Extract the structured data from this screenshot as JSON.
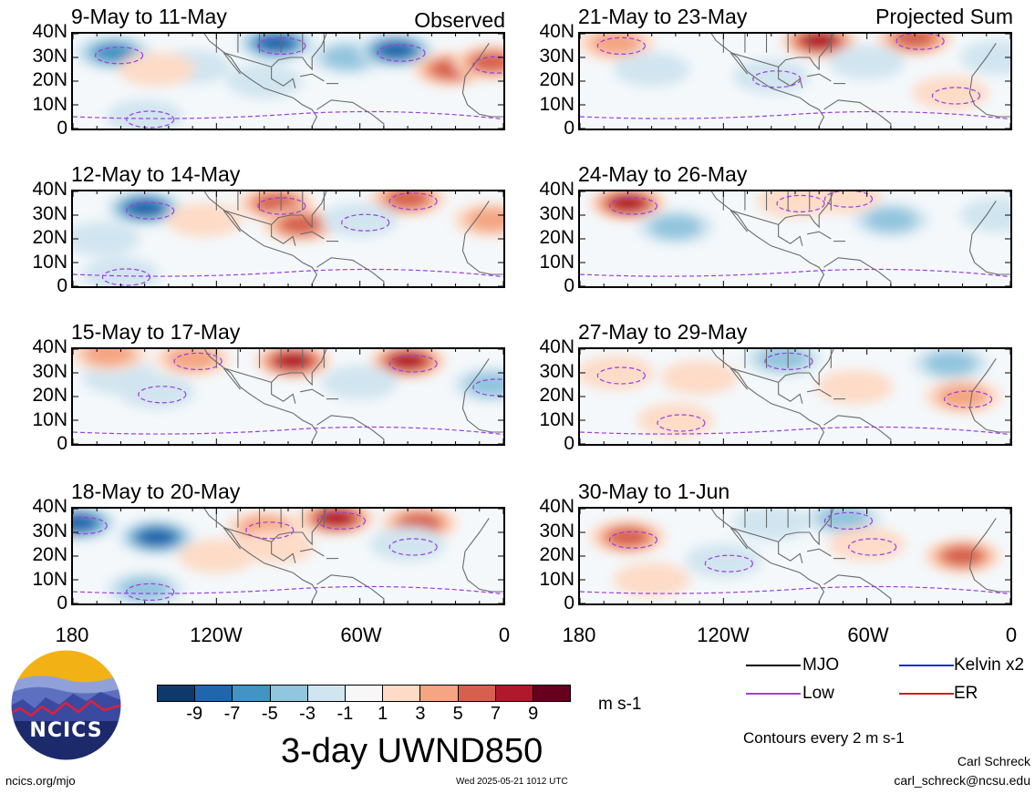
{
  "figure": {
    "variable_title": "3-day UWND850",
    "units": "m s-1",
    "contour_note": "Contours every 2 m s-1",
    "author": "Carl Schreck",
    "email": "carl_schreck@ncsu.edu",
    "site": "ncics.org/mjo",
    "timestamp": "Wed 2025-05-21 1012 UTC",
    "logo_text": "NCICS",
    "observed_label": "Observed",
    "projected_label": "Projected Sum"
  },
  "legend": {
    "items": [
      {
        "label": "MJO",
        "color": "#000000"
      },
      {
        "label": "Kelvin x2",
        "color": "#1f2fd0"
      },
      {
        "label": "Low",
        "color": "#a040e0"
      },
      {
        "label": "ER",
        "color": "#d02020"
      }
    ]
  },
  "colorbar": {
    "labels": [
      "-9",
      "-7",
      "-5",
      "-3",
      "-1",
      "1",
      "3",
      "5",
      "7",
      "9"
    ],
    "colors": [
      "#0d3a6b",
      "#2166ac",
      "#4393c3",
      "#92c5de",
      "#d1e5f0",
      "#f7f7f7",
      "#fddbc7",
      "#f4a582",
      "#d6604d",
      "#b2182b",
      "#67001f"
    ]
  },
  "chart_data": [
    {
      "type": "heatmap",
      "title": "9-May to 11-May",
      "column": "observed",
      "x_ticks": [
        "180",
        "120W",
        "60W",
        "0"
      ],
      "y_ticks": [
        "40N",
        "30N",
        "20N",
        "10N",
        "0"
      ],
      "xlim": [
        -180,
        0
      ],
      "ylim": [
        0,
        40
      ],
      "features": [
        {
          "lon": -163,
          "lat": 32,
          "value": -6
        },
        {
          "lon": -130,
          "lat": 26,
          "value": -3
        },
        {
          "lon": -95,
          "lat": 36,
          "value": -8
        },
        {
          "lon": -65,
          "lat": 30,
          "value": -4
        },
        {
          "lon": -45,
          "lat": 33,
          "value": -8
        },
        {
          "lon": -22,
          "lat": 25,
          "value": 7
        },
        {
          "lon": -5,
          "lat": 28,
          "value": 6
        },
        {
          "lon": -145,
          "lat": 25,
          "value": 2
        },
        {
          "lon": -150,
          "lat": 5,
          "value": -2
        },
        {
          "lon": -100,
          "lat": 20,
          "value": -3
        }
      ]
    },
    {
      "type": "heatmap",
      "title": "12-May to 14-May",
      "column": "observed",
      "x_ticks": [
        "180",
        "120W",
        "60W",
        "0"
      ],
      "y_ticks": [
        "40N",
        "30N",
        "20N",
        "10N",
        "0"
      ],
      "xlim": [
        -180,
        0
      ],
      "ylim": [
        0,
        40
      ],
      "features": [
        {
          "lon": -150,
          "lat": 33,
          "value": -9
        },
        {
          "lon": -168,
          "lat": 20,
          "value": -3
        },
        {
          "lon": -95,
          "lat": 35,
          "value": 6
        },
        {
          "lon": -85,
          "lat": 26,
          "value": 7
        },
        {
          "lon": -40,
          "lat": 37,
          "value": 6
        },
        {
          "lon": -5,
          "lat": 28,
          "value": 4
        },
        {
          "lon": -60,
          "lat": 28,
          "value": -3
        },
        {
          "lon": -125,
          "lat": 28,
          "value": 2
        },
        {
          "lon": -160,
          "lat": 5,
          "value": -2
        }
      ]
    },
    {
      "type": "heatmap",
      "title": "15-May to 17-May",
      "column": "observed",
      "x_ticks": [
        "180",
        "120W",
        "60W",
        "0"
      ],
      "y_ticks": [
        "40N",
        "30N",
        "20N",
        "10N",
        "0"
      ],
      "xlim": [
        -180,
        0
      ],
      "ylim": [
        0,
        40
      ],
      "features": [
        {
          "lon": -130,
          "lat": 36,
          "value": 5
        },
        {
          "lon": -88,
          "lat": 35,
          "value": 9
        },
        {
          "lon": -40,
          "lat": 35,
          "value": 8
        },
        {
          "lon": -160,
          "lat": 28,
          "value": -3
        },
        {
          "lon": -145,
          "lat": 22,
          "value": -3
        },
        {
          "lon": -60,
          "lat": 26,
          "value": -3
        },
        {
          "lon": -5,
          "lat": 25,
          "value": -5
        },
        {
          "lon": -165,
          "lat": 38,
          "value": 4
        }
      ]
    },
    {
      "type": "heatmap",
      "title": "18-May to 20-May",
      "column": "observed",
      "x_ticks": [
        "180",
        "120W",
        "60W",
        "0"
      ],
      "y_ticks": [
        "40N",
        "30N",
        "20N",
        "10N",
        "0"
      ],
      "xlim": [
        -180,
        0
      ],
      "ylim": [
        0,
        40
      ],
      "features": [
        {
          "lon": -178,
          "lat": 34,
          "value": -9
        },
        {
          "lon": -145,
          "lat": 28,
          "value": -8
        },
        {
          "lon": -70,
          "lat": 36,
          "value": 9
        },
        {
          "lon": -35,
          "lat": 34,
          "value": 6
        },
        {
          "lon": -100,
          "lat": 32,
          "value": 5
        },
        {
          "lon": -120,
          "lat": 20,
          "value": 3
        },
        {
          "lon": -150,
          "lat": 6,
          "value": -5
        },
        {
          "lon": -95,
          "lat": 24,
          "value": 3
        },
        {
          "lon": -40,
          "lat": 25,
          "value": -3
        }
      ]
    },
    {
      "type": "heatmap",
      "title": "21-May to 23-May",
      "column": "projected",
      "x_ticks": [
        "180",
        "120W",
        "60W",
        "0"
      ],
      "y_ticks": [
        "40N",
        "30N",
        "20N",
        "10N",
        "0"
      ],
      "xlim": [
        -180,
        0
      ],
      "ylim": [
        0,
        40
      ],
      "features": [
        {
          "lon": -165,
          "lat": 36,
          "value": 5
        },
        {
          "lon": -80,
          "lat": 37,
          "value": 9
        },
        {
          "lon": -40,
          "lat": 38,
          "value": 6
        },
        {
          "lon": -150,
          "lat": 25,
          "value": -3
        },
        {
          "lon": -100,
          "lat": 22,
          "value": -3
        },
        {
          "lon": -60,
          "lat": 28,
          "value": -2
        },
        {
          "lon": -25,
          "lat": 15,
          "value": 3
        },
        {
          "lon": -5,
          "lat": 30,
          "value": -3
        }
      ]
    },
    {
      "type": "heatmap",
      "title": "24-May to 26-May",
      "column": "projected",
      "x_ticks": [
        "180",
        "120W",
        "60W",
        "0"
      ],
      "y_ticks": [
        "40N",
        "30N",
        "20N",
        "10N",
        "0"
      ],
      "xlim": [
        -180,
        0
      ],
      "ylim": [
        0,
        40
      ],
      "features": [
        {
          "lon": -160,
          "lat": 35,
          "value": 8
        },
        {
          "lon": -140,
          "lat": 25,
          "value": -5
        },
        {
          "lon": -90,
          "lat": 36,
          "value": 3
        },
        {
          "lon": -50,
          "lat": 28,
          "value": -4
        },
        {
          "lon": -70,
          "lat": 38,
          "value": 3
        },
        {
          "lon": -5,
          "lat": 30,
          "value": -3
        }
      ]
    },
    {
      "type": "heatmap",
      "title": "27-May to 29-May",
      "column": "projected",
      "x_ticks": [
        "180",
        "120W",
        "60W",
        "0"
      ],
      "y_ticks": [
        "40N",
        "30N",
        "20N",
        "10N",
        "0"
      ],
      "xlim": [
        -180,
        0
      ],
      "ylim": [
        0,
        40
      ],
      "features": [
        {
          "lon": -95,
          "lat": 36,
          "value": -5
        },
        {
          "lon": -25,
          "lat": 34,
          "value": -5
        },
        {
          "lon": -165,
          "lat": 30,
          "value": 3
        },
        {
          "lon": -130,
          "lat": 28,
          "value": 3
        },
        {
          "lon": -20,
          "lat": 20,
          "value": 5
        },
        {
          "lon": -65,
          "lat": 24,
          "value": 2
        },
        {
          "lon": -140,
          "lat": 10,
          "value": 2
        }
      ]
    },
    {
      "type": "heatmap",
      "title": "30-May to 1-Jun",
      "column": "projected",
      "x_ticks": [
        "180",
        "120W",
        "60W",
        "0"
      ],
      "y_ticks": [
        "40N",
        "30N",
        "20N",
        "10N",
        "0"
      ],
      "xlim": [
        -180,
        0
      ],
      "ylim": [
        0,
        40
      ],
      "features": [
        {
          "lon": -160,
          "lat": 28,
          "value": 6
        },
        {
          "lon": -100,
          "lat": 34,
          "value": -3
        },
        {
          "lon": -70,
          "lat": 36,
          "value": -4
        },
        {
          "lon": -20,
          "lat": 20,
          "value": 6
        },
        {
          "lon": -60,
          "lat": 25,
          "value": 3
        },
        {
          "lon": -150,
          "lat": 10,
          "value": 2
        },
        {
          "lon": -120,
          "lat": 18,
          "value": -2
        }
      ]
    }
  ]
}
